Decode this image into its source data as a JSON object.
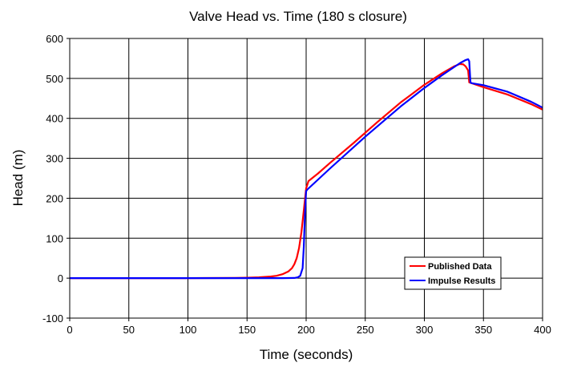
{
  "chart_data": {
    "type": "line",
    "title": "Valve Head vs. Time (180 s closure)",
    "xlabel": "Time (seconds)",
    "ylabel": "Head (m)",
    "xlim": [
      0,
      400
    ],
    "ylim": [
      -100,
      600
    ],
    "xticks": [
      0,
      50,
      100,
      150,
      200,
      250,
      300,
      350,
      400
    ],
    "yticks": [
      -100,
      0,
      100,
      200,
      300,
      400,
      500,
      600
    ],
    "grid": true,
    "legend_position": "bottom-right",
    "series": [
      {
        "name": "Published Data",
        "color": "#ff0000",
        "x": [
          0,
          100,
          140,
          150,
          160,
          170,
          175,
          180,
          185,
          188,
          190,
          192,
          194,
          196,
          198,
          200,
          202,
          210,
          220,
          240,
          260,
          280,
          300,
          315,
          325,
          330,
          333,
          335,
          337,
          338,
          340,
          350,
          370,
          390,
          400
        ],
        "y": [
          0,
          0,
          0.5,
          1,
          2,
          4,
          6,
          10,
          17,
          25,
          35,
          50,
          75,
          115,
          170,
          225,
          243,
          262,
          288,
          338,
          390,
          440,
          484,
          513,
          530,
          536,
          535,
          530,
          520,
          490,
          488,
          478,
          460,
          436,
          422
        ]
      },
      {
        "name": "Impulse Results",
        "color": "#0000ff",
        "x": [
          0,
          100,
          150,
          180,
          190,
          193,
          195,
          197,
          198,
          199,
          200,
          201,
          220,
          250,
          280,
          300,
          315,
          325,
          330,
          335,
          337,
          338,
          339,
          340,
          350,
          370,
          390,
          400
        ],
        "y": [
          0,
          0,
          0,
          0,
          0.5,
          2,
          6,
          25,
          80,
          160,
          218,
          222,
          274,
          354,
          430,
          476,
          508,
          528,
          538,
          546,
          548,
          543,
          490,
          488,
          483,
          467,
          442,
          427
        ]
      }
    ]
  }
}
